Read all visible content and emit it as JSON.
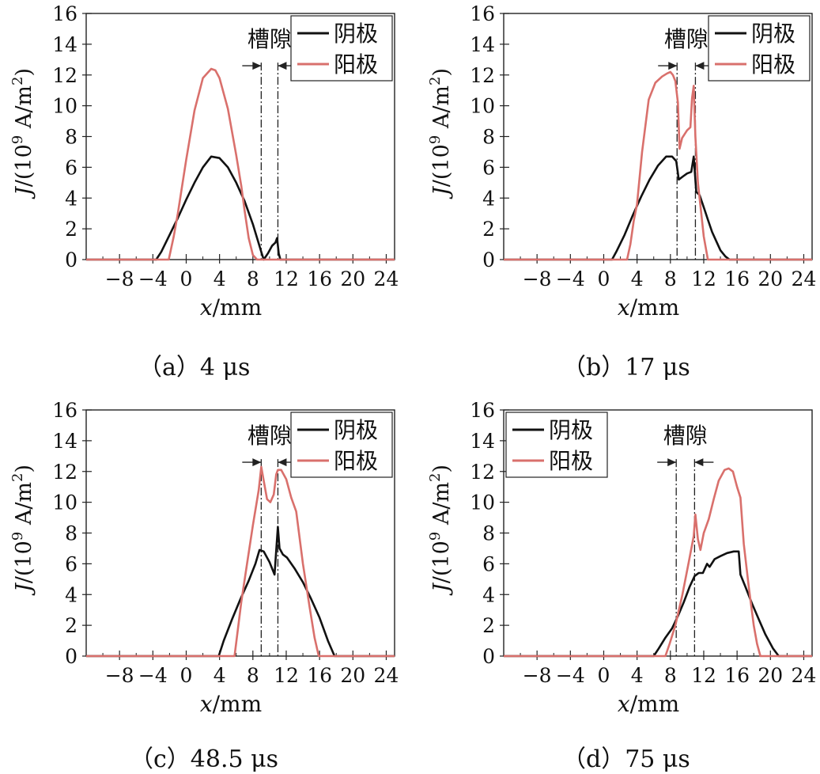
{
  "figure": {
    "panel_ids": [
      "a",
      "b",
      "c",
      "d"
    ]
  },
  "chart_data": [
    {
      "id": "a",
      "type": "line",
      "caption": "（a）4 μs",
      "xlabel_italic": "x",
      "xlabel_rest": "/mm",
      "ylabel_italic": "J",
      "ylabel_pre": "/(10",
      "ylabel_exp": "9",
      "ylabel_mid": " A/m",
      "ylabel_sq": "2",
      "ylabel_post": ")",
      "xlim": [
        -12,
        25
      ],
      "ylim": [
        0,
        16
      ],
      "xticks": [
        -8,
        -4,
        0,
        4,
        8,
        12,
        16,
        20,
        24
      ],
      "xtick_labels": [
        "−8",
        "−4",
        "0",
        "4",
        "8",
        "12",
        "16",
        "20",
        "24"
      ],
      "yticks": [
        0,
        2,
        4,
        6,
        8,
        10,
        12,
        14,
        16
      ],
      "ytick_labels": [
        "0",
        "2",
        "4",
        "6",
        "8",
        "10",
        "12",
        "14",
        "16"
      ],
      "slot": {
        "label": "槽隙",
        "x_left": 9,
        "x_right": 11,
        "label_y": 14.4,
        "arrow_y": 12.6
      },
      "legend": {
        "placement": "top-right",
        "entries": [
          "阴极",
          "阳极"
        ]
      },
      "series": [
        {
          "name": "阴极",
          "color": "#111111",
          "x": [
            -12,
            -3.6,
            -3,
            -2,
            -1,
            0,
            1,
            2,
            3,
            4,
            5,
            6,
            7,
            8,
            8.5,
            9,
            9.3,
            9.8,
            10.3,
            10.7,
            10.9,
            11.1,
            11.3,
            12,
            25
          ],
          "y": [
            0,
            0,
            0.5,
            1.6,
            2.7,
            3.9,
            5.0,
            6.0,
            6.7,
            6.6,
            6.0,
            5.0,
            3.8,
            2.3,
            1.4,
            0.5,
            0,
            0.4,
            0.9,
            1.1,
            1.4,
            0.4,
            0,
            0,
            0
          ]
        },
        {
          "name": "阳极",
          "color": "#d9706c",
          "x": [
            -12,
            -2.1,
            -1.5,
            -1,
            0,
            1,
            2,
            3,
            3.5,
            4,
            5,
            6,
            6.6,
            7,
            7.5,
            8,
            8.5,
            25
          ],
          "y": [
            0,
            0,
            1.5,
            3.0,
            6.5,
            9.7,
            11.8,
            12.4,
            12.3,
            11.8,
            9.8,
            6.8,
            4.8,
            3.2,
            1.4,
            0.3,
            0,
            0
          ]
        }
      ]
    },
    {
      "id": "b",
      "type": "line",
      "caption": "（b）17 μs",
      "xlabel_italic": "x",
      "xlabel_rest": "/mm",
      "ylabel_italic": "J",
      "ylabel_pre": "/(10",
      "ylabel_exp": "9",
      "ylabel_mid": " A/m",
      "ylabel_sq": "2",
      "ylabel_post": ")",
      "xlim": [
        -12,
        25
      ],
      "ylim": [
        0,
        16
      ],
      "xticks": [
        -8,
        -4,
        0,
        4,
        8,
        12,
        16,
        20,
        24
      ],
      "xtick_labels": [
        "−8",
        "−4",
        "0",
        "4",
        "8",
        "12",
        "16",
        "20",
        "24"
      ],
      "yticks": [
        0,
        2,
        4,
        6,
        8,
        10,
        12,
        14,
        16
      ],
      "ytick_labels": [
        "0",
        "2",
        "4",
        "6",
        "8",
        "10",
        "12",
        "14",
        "16"
      ],
      "slot": {
        "label": "槽隙",
        "x_left": 8.8,
        "x_right": 11,
        "label_y": 14.4,
        "arrow_y": 12.6
      },
      "legend": {
        "placement": "top-right",
        "entries": [
          "阴极",
          "阳极"
        ]
      },
      "series": [
        {
          "name": "阴极",
          "color": "#111111",
          "x": [
            -12,
            1.0,
            1.5,
            2.5,
            3.5,
            4.5,
            5.5,
            6.5,
            7.5,
            8.2,
            8.7,
            9.0,
            9.5,
            10,
            10.5,
            10.8,
            11.1,
            11.5,
            12,
            12.5,
            13,
            13.5,
            14,
            14.6,
            15.1,
            25
          ],
          "y": [
            0,
            0,
            0.5,
            1.6,
            2.9,
            4.1,
            5.2,
            6.1,
            6.7,
            6.7,
            6.4,
            5.2,
            5.4,
            5.6,
            5.7,
            6.7,
            4.4,
            4.2,
            3.4,
            2.6,
            1.8,
            1.2,
            0.6,
            0.2,
            0,
            0
          ]
        },
        {
          "name": "阳极",
          "color": "#d9706c",
          "x": [
            -12,
            2.8,
            3.2,
            3.6,
            4.0,
            4.6,
            5.4,
            6.2,
            7.0,
            7.6,
            8.0,
            8.3,
            8.6,
            8.9,
            9.1,
            9.4,
            10.0,
            10.4,
            10.6,
            10.8,
            11.0,
            11.3,
            11.6,
            12.0,
            12.5,
            25
          ],
          "y": [
            0,
            0,
            1.0,
            2.5,
            3.6,
            7.0,
            10.4,
            11.5,
            11.9,
            12.1,
            12.2,
            12.0,
            11.6,
            10.2,
            7.2,
            7.9,
            8.4,
            8.6,
            10.5,
            11.3,
            8.0,
            5.0,
            3.5,
            1.5,
            0,
            0
          ]
        }
      ]
    },
    {
      "id": "c",
      "type": "line",
      "caption": "（c）48.5 μs",
      "xlabel_italic": "x",
      "xlabel_rest": "/mm",
      "ylabel_italic": "J",
      "ylabel_pre": "/(10",
      "ylabel_exp": "9",
      "ylabel_mid": " A/m",
      "ylabel_sq": "2",
      "ylabel_post": ")",
      "xlim": [
        -12,
        25
      ],
      "ylim": [
        0,
        16
      ],
      "xticks": [
        -8,
        -4,
        0,
        4,
        8,
        12,
        16,
        20,
        24
      ],
      "xtick_labels": [
        "−8",
        "−4",
        "0",
        "4",
        "8",
        "12",
        "16",
        "20",
        "24"
      ],
      "yticks": [
        0,
        2,
        4,
        6,
        8,
        10,
        12,
        14,
        16
      ],
      "ytick_labels": [
        "0",
        "2",
        "4",
        "6",
        "8",
        "10",
        "12",
        "14",
        "16"
      ],
      "slot": {
        "label": "槽隙",
        "x_left": 9,
        "x_right": 11,
        "label_y": 14.4,
        "arrow_y": 12.6
      },
      "legend": {
        "placement": "top-right",
        "entries": [
          "阴极",
          "阳极"
        ]
      },
      "series": [
        {
          "name": "阴极",
          "color": "#111111",
          "x": [
            -12,
            3.9,
            4.5,
            5.5,
            6.5,
            7.5,
            8.3,
            8.8,
            9.3,
            10.0,
            10.6,
            11.0,
            11.2,
            11.6,
            12.1,
            13.0,
            14.0,
            15.0,
            16.0,
            17.0,
            17.8,
            25
          ],
          "y": [
            0,
            0,
            1.0,
            2.4,
            3.7,
            4.9,
            6.0,
            6.9,
            6.8,
            6.1,
            5.3,
            8.4,
            7.0,
            6.6,
            6.4,
            5.7,
            4.8,
            3.7,
            2.5,
            1.0,
            0,
            0
          ]
        },
        {
          "name": "阳极",
          "color": "#d9706c",
          "x": [
            -12,
            5.8,
            6.6,
            7.3,
            8.0,
            8.7,
            9.0,
            9.3,
            9.7,
            10.1,
            10.5,
            10.8,
            11.0,
            11.4,
            12.0,
            12.6,
            13.2,
            14.0,
            14.8,
            15.4,
            15.9,
            25
          ],
          "y": [
            0,
            0,
            3.5,
            6.0,
            8.5,
            10.8,
            12.3,
            11.4,
            10.2,
            10.0,
            10.5,
            11.8,
            12.1,
            12.1,
            11.5,
            10.3,
            9.4,
            6.0,
            3.2,
            1.2,
            0,
            0
          ]
        }
      ]
    },
    {
      "id": "d",
      "type": "line",
      "caption": "（d）75 μs",
      "xlabel_italic": "x",
      "xlabel_rest": "/mm",
      "ylabel_italic": "J",
      "ylabel_pre": "/(10",
      "ylabel_exp": "9",
      "ylabel_mid": " A/m",
      "ylabel_sq": "2",
      "ylabel_post": ")",
      "xlim": [
        -12,
        25
      ],
      "ylim": [
        0,
        16
      ],
      "xticks": [
        -8,
        -4,
        0,
        4,
        8,
        12,
        16,
        20,
        24
      ],
      "xtick_labels": [
        "−8",
        "−4",
        "0",
        "4",
        "8",
        "12",
        "16",
        "20",
        "24"
      ],
      "yticks": [
        0,
        2,
        4,
        6,
        8,
        10,
        12,
        14,
        16
      ],
      "ytick_labels": [
        "0",
        "2",
        "4",
        "6",
        "8",
        "10",
        "12",
        "14",
        "16"
      ],
      "slot": {
        "label": "槽隙",
        "x_left": 8.7,
        "x_right": 10.9,
        "label_y": 14.4,
        "arrow_y": 12.6
      },
      "legend": {
        "placement": "top-left",
        "entries": [
          "阴极",
          "阳极"
        ]
      },
      "series": [
        {
          "name": "阴极",
          "color": "#111111",
          "x": [
            -12,
            6.0,
            6.6,
            7.4,
            8.2,
            8.9,
            9.6,
            10.3,
            10.9,
            11.4,
            11.9,
            12.4,
            12.7,
            13.3,
            14.0,
            14.8,
            15.6,
            16.2,
            16.4,
            17.0,
            17.8,
            18.6,
            19.4,
            20.3,
            21.0,
            25
          ],
          "y": [
            0,
            0,
            0.5,
            1.2,
            1.8,
            2.6,
            3.5,
            4.5,
            5.2,
            5.4,
            5.4,
            6.0,
            5.8,
            6.3,
            6.5,
            6.7,
            6.8,
            6.8,
            5.3,
            4.5,
            3.4,
            2.4,
            1.4,
            0.5,
            0,
            0
          ]
        },
        {
          "name": "阳极",
          "color": "#d9706c",
          "x": [
            -12,
            7.4,
            7.9,
            8.6,
            9.4,
            10.2,
            10.8,
            11.0,
            11.3,
            11.6,
            12.0,
            12.6,
            13.2,
            13.8,
            14.5,
            15.0,
            15.5,
            16.0,
            16.4,
            16.8,
            17.4,
            18.0,
            18.4,
            18.8,
            25
          ],
          "y": [
            0,
            0,
            0.8,
            2.0,
            3.9,
            6.1,
            7.8,
            9.2,
            7.6,
            6.9,
            8.0,
            8.9,
            10.2,
            11.4,
            12.1,
            12.2,
            12.0,
            11.0,
            10.3,
            7.3,
            4.5,
            2.0,
            0.8,
            0,
            0
          ]
        }
      ]
    }
  ]
}
